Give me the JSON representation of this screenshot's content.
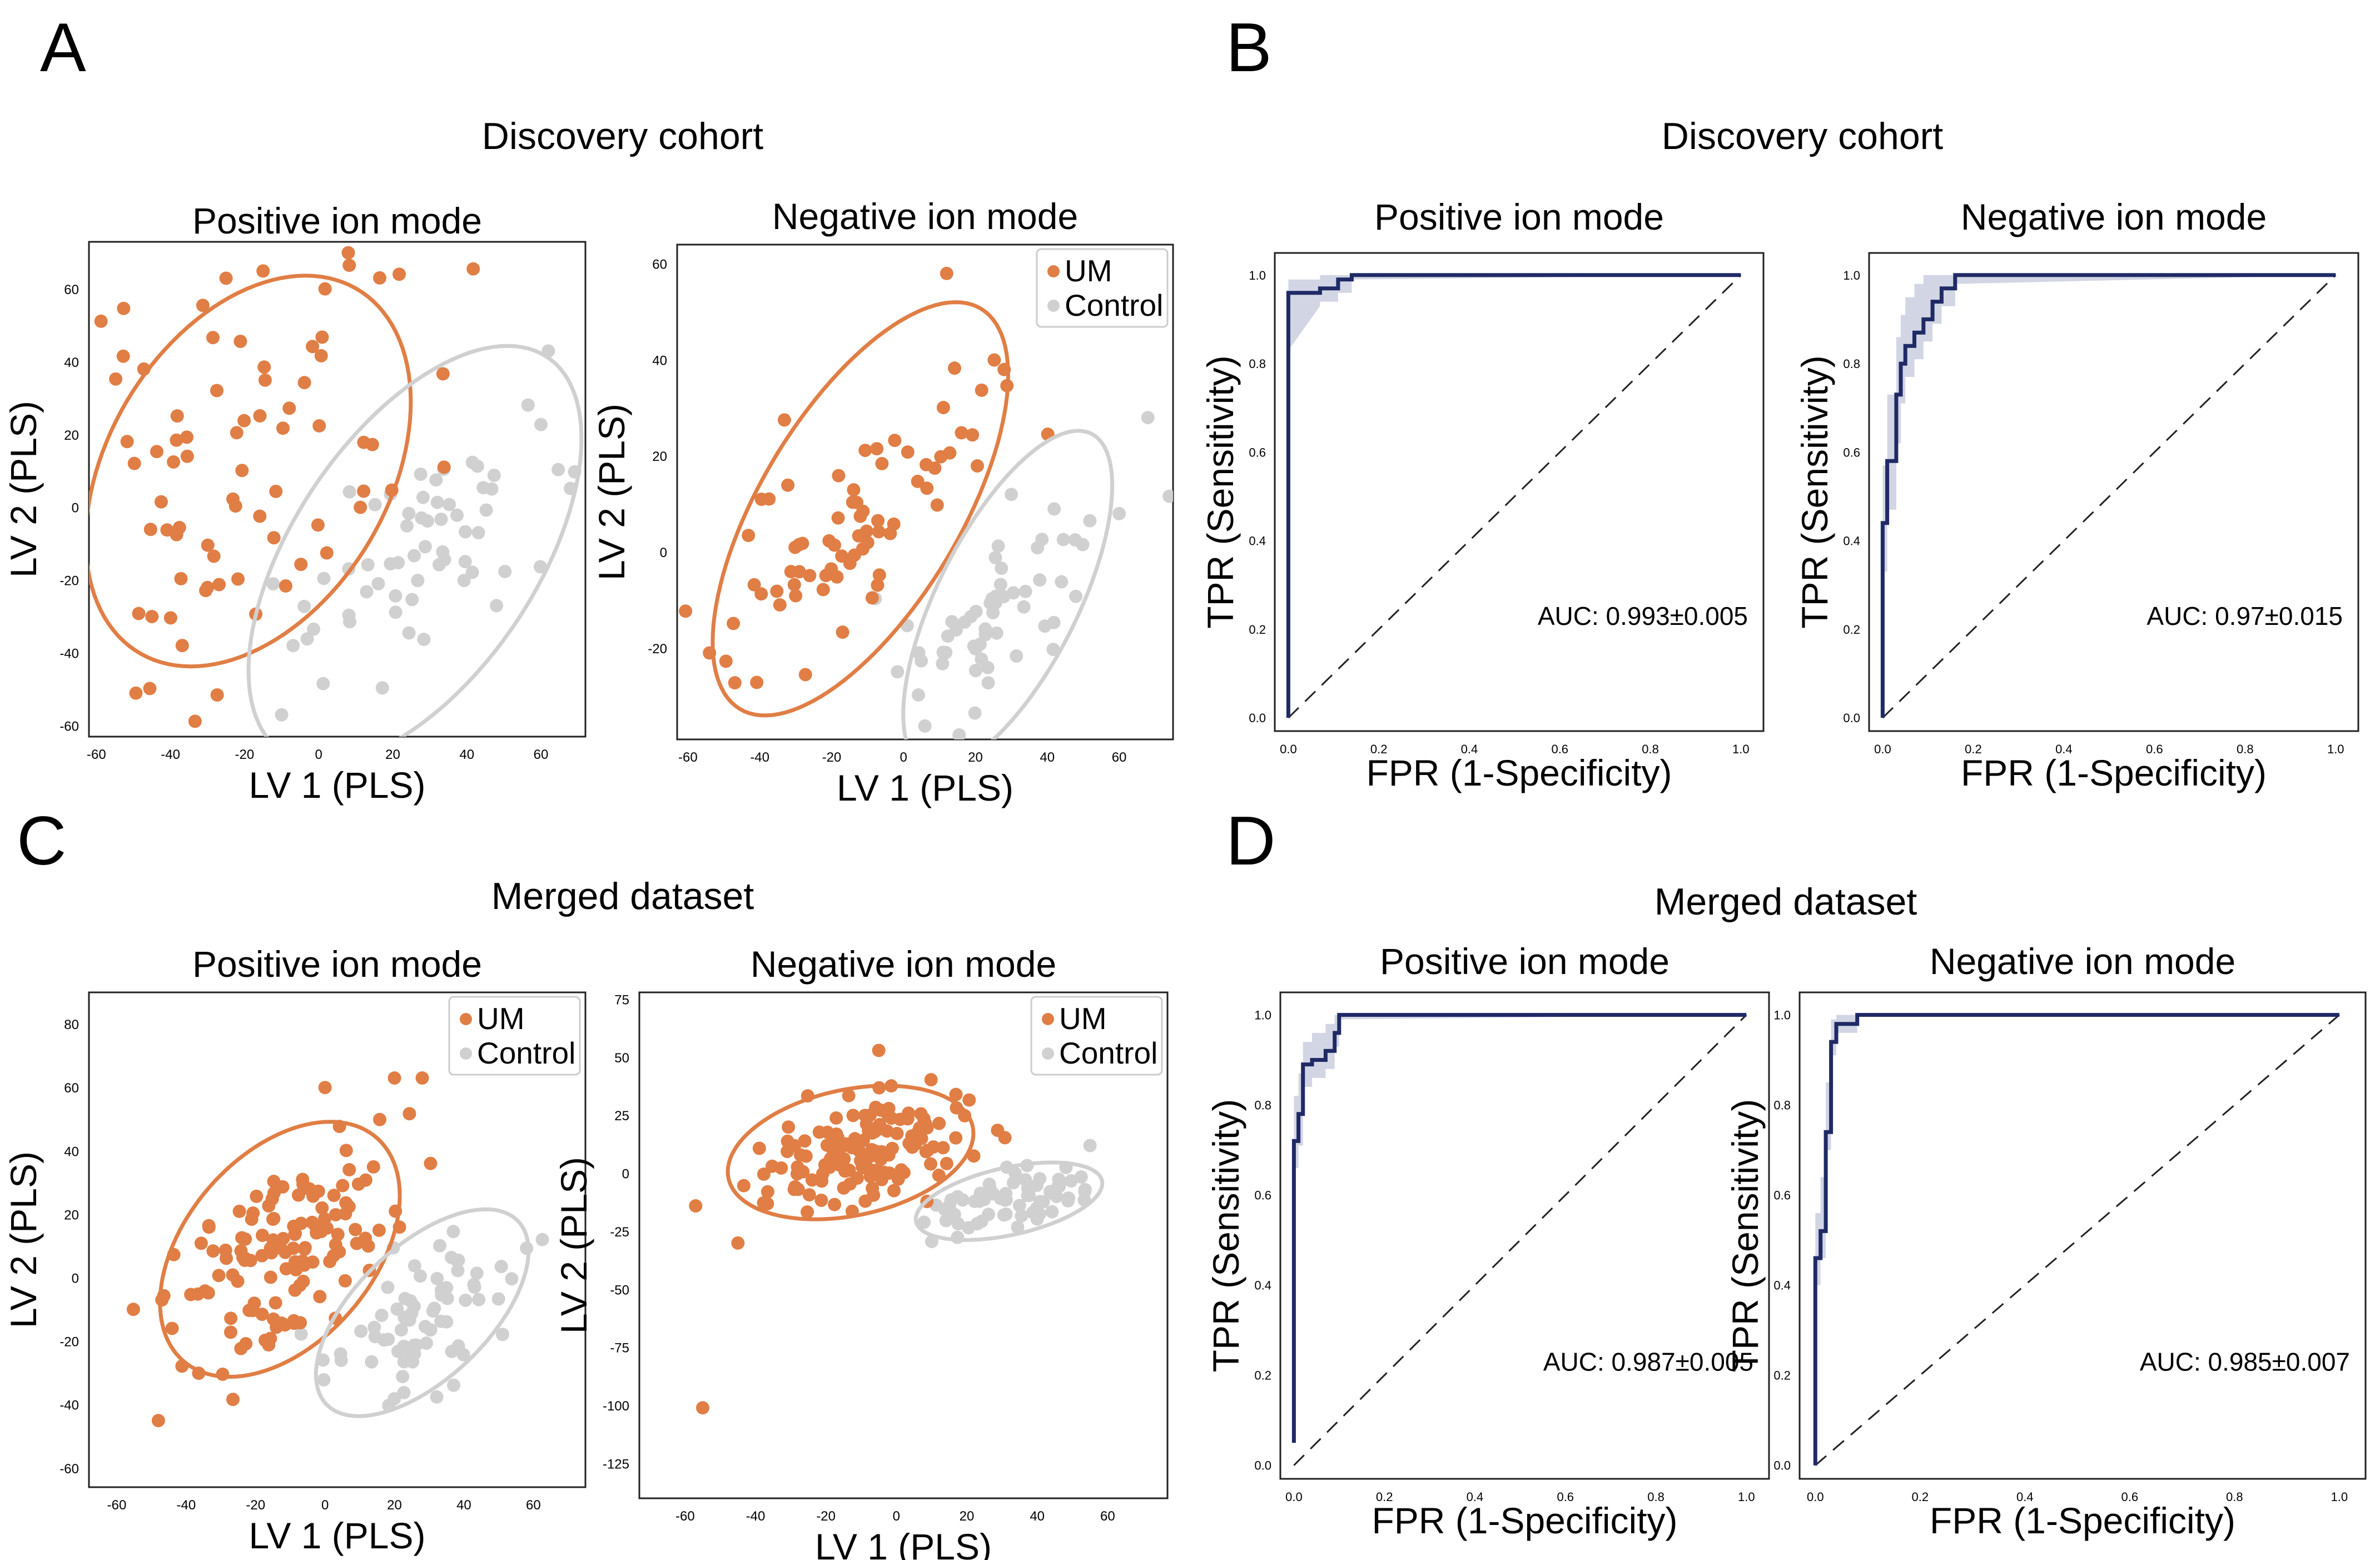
{
  "colors": {
    "um": "#E07E45",
    "control": "#D0D0D0",
    "roc_line": "#1F2A66",
    "roc_band": "#C3C7DB",
    "axis": "#222222"
  },
  "panels": {
    "A": {
      "letter": "A",
      "section_title": "Discovery cohort"
    },
    "B": {
      "letter": "B",
      "section_title": "Discovery cohort"
    },
    "C": {
      "letter": "C",
      "section_title": "Merged dataset"
    },
    "D": {
      "letter": "D",
      "section_title": "Merged dataset"
    }
  },
  "legend": {
    "um": "UM",
    "control": "Control"
  },
  "chart_data": [
    {
      "id": "pA",
      "panel": "A",
      "type": "scatter",
      "title": "Positive ion mode",
      "xlabel": "LV 1 (PLS)",
      "ylabel": "LV 2 (PLS)",
      "xlim": [
        -62,
        72
      ],
      "ylim": [
        -63,
        73
      ],
      "xticks": [
        -60,
        -40,
        -20,
        0,
        20,
        40,
        60
      ],
      "yticks": [
        -60,
        -40,
        -20,
        0,
        20,
        40,
        60
      ],
      "legend": false,
      "series": [
        {
          "name": "UM",
          "color_key": "um",
          "seed": 11,
          "n": 72,
          "cx": -19,
          "cy": 10,
          "sx": 26,
          "sy": 31,
          "rho": 0.45,
          "extra": [
            [
              -15,
              65
            ],
            [
              8,
              70
            ],
            [
              -25,
              63
            ],
            [
              -45,
              -30
            ],
            [
              -30,
              -22
            ]
          ],
          "ellipse": {
            "cx": -19,
            "cy": 10,
            "rx": 58,
            "ry": 38,
            "angle": 60
          }
        },
        {
          "name": "Control",
          "color_key": "control",
          "seed": 23,
          "n": 60,
          "cx": 25,
          "cy": -15,
          "sx": 20,
          "sy": 22,
          "rho": 0.7,
          "extra": [
            [
              62,
              43
            ],
            [
              -10,
              -57
            ],
            [
              48,
              -27
            ]
          ],
          "ellipse": {
            "cx": 26,
            "cy": -13,
            "rx": 65,
            "ry": 33,
            "angle": 57
          }
        }
      ]
    },
    {
      "id": "pA2",
      "panel": "A",
      "type": "scatter",
      "title": "Negative ion mode",
      "xlabel": "LV 1 (PLS)",
      "ylabel": "LV 2 (PLS)",
      "xlim": [
        -63,
        75
      ],
      "ylim": [
        -39,
        64
      ],
      "xticks": [
        -60,
        -40,
        -20,
        0,
        20,
        40,
        60
      ],
      "yticks": [
        -20,
        0,
        20,
        40,
        60
      ],
      "legend": true,
      "series": [
        {
          "name": "UM",
          "color_key": "um",
          "seed": 37,
          "n": 72,
          "cx": -12,
          "cy": 8,
          "sx": 18,
          "sy": 14,
          "rho": 0.7,
          "extra": [
            [
              12,
              58
            ],
            [
              28,
              38
            ],
            [
              -54,
              -21
            ]
          ],
          "ellipse": {
            "cx": -12,
            "cy": 9,
            "rx": 54,
            "ry": 25,
            "angle": 47
          }
        },
        {
          "name": "Control",
          "color_key": "control",
          "seed": 41,
          "n": 58,
          "cx": 28,
          "cy": -12,
          "sx": 14,
          "sy": 12,
          "rho": 0.7,
          "extra": [
            [
              68,
              28
            ],
            [
              60,
              8
            ],
            [
              30,
              12
            ]
          ],
          "ellipse": {
            "cx": 29,
            "cy": -10,
            "rx": 42,
            "ry": 18,
            "angle": 53
          }
        }
      ]
    },
    {
      "id": "pC",
      "panel": "C",
      "type": "scatter",
      "title": "Positive ion mode",
      "xlabel": "LV 1 (PLS)",
      "ylabel": "LV 2 (PLS)",
      "xlim": [
        -68,
        75
      ],
      "ylim": [
        -66,
        90
      ],
      "xticks": [
        -60,
        -40,
        -20,
        0,
        20,
        40,
        60
      ],
      "yticks": [
        -60,
        -40,
        -20,
        0,
        20,
        40,
        60,
        80
      ],
      "legend": true,
      "series": [
        {
          "name": "UM",
          "color_key": "um",
          "seed": 53,
          "n": 130,
          "cx": -12,
          "cy": 8,
          "sx": 16,
          "sy": 16,
          "rho": 0.55,
          "extra": [
            [
              0,
              60
            ],
            [
              20,
              63
            ],
            [
              28,
              63
            ],
            [
              -48,
              -45
            ]
          ],
          "ellipse": {
            "cx": -13,
            "cy": 9,
            "rx": 45,
            "ry": 28,
            "angle": 55
          }
        },
        {
          "name": "Control",
          "color_key": "control",
          "seed": 67,
          "n": 72,
          "cx": 28,
          "cy": -12,
          "sx": 13,
          "sy": 13,
          "rho": 0.6,
          "extra": [],
          "ellipse": {
            "cx": 28,
            "cy": -11,
            "rx": 40,
            "ry": 20,
            "angle": 48
          }
        }
      ]
    },
    {
      "id": "pC2",
      "panel": "C",
      "type": "scatter",
      "title": "Negative ion mode",
      "xlabel": "LV 1 (PLS)",
      "ylabel": "LV 2 (PLS)",
      "xlim": [
        -73,
        77
      ],
      "ylim": [
        -140,
        78
      ],
      "xticks": [
        -60,
        -40,
        -20,
        0,
        20,
        40,
        60
      ],
      "yticks": [
        -125,
        -100,
        -75,
        -50,
        -25,
        0,
        25,
        50,
        75
      ],
      "legend": true,
      "series": [
        {
          "name": "UM",
          "color_key": "um",
          "seed": 79,
          "n": 150,
          "cx": -8,
          "cy": 9,
          "sx": 14,
          "sy": 12,
          "rho": 0.5,
          "extra": [
            [
              -5,
              53
            ],
            [
              -57,
              -14
            ],
            [
              -55,
              -101
            ],
            [
              -45,
              -30
            ]
          ],
          "ellipse": {
            "cx": -13,
            "cy": 9,
            "rx": 37,
            "ry": 26,
            "angle": 28
          }
        },
        {
          "name": "Control",
          "color_key": "control",
          "seed": 83,
          "n": 70,
          "cx": 31,
          "cy": -12,
          "sx": 11,
          "sy": 7,
          "rho": 0.4,
          "extra": [
            [
              55,
              12
            ]
          ],
          "ellipse": {
            "cx": 32,
            "cy": -12,
            "rx": 28,
            "ry": 14,
            "angle": 22
          }
        }
      ]
    },
    {
      "id": "pB",
      "panel": "B",
      "type": "line",
      "subtype": "roc",
      "title": "Positive ion mode",
      "xlabel": "FPR (1-Specificity)",
      "ylabel": "TPR (Sensitivity)",
      "xlim": [
        -0.03,
        1.05
      ],
      "ylim": [
        -0.03,
        1.05
      ],
      "xticks": [
        "0.0",
        "0.2",
        "0.4",
        "0.6",
        "0.8",
        "1.0"
      ],
      "yticks": [
        "0.0",
        "0.2",
        "0.4",
        "0.6",
        "0.8",
        "1.0"
      ],
      "auc_label": "AUC: 0.993±0.005",
      "x": [
        0,
        0,
        0.07,
        0.07,
        0.11,
        0.11,
        0.14,
        0.14,
        1
      ],
      "y": [
        0,
        0.96,
        0.96,
        0.97,
        0.97,
        0.99,
        0.99,
        1.0,
        1.0
      ],
      "band_upper": [
        0.08,
        0.99,
        0.99,
        1.0,
        1.0,
        1.0,
        1.0,
        1.0,
        1.0
      ],
      "band_lower": [
        0,
        0.83,
        0.93,
        0.94,
        0.94,
        0.96,
        0.96,
        0.99,
        1.0
      ]
    },
    {
      "id": "pB2",
      "panel": "B",
      "type": "line",
      "subtype": "roc",
      "title": "Negative ion mode",
      "xlabel": "FPR (1-Specificity)",
      "ylabel": "TPR (Sensitivity)",
      "xlim": [
        -0.03,
        1.05
      ],
      "ylim": [
        -0.03,
        1.05
      ],
      "xticks": [
        "0.0",
        "0.2",
        "0.4",
        "0.6",
        "0.8",
        "1.0"
      ],
      "yticks": [
        "0.0",
        "0.2",
        "0.4",
        "0.6",
        "0.8",
        "1.0"
      ],
      "auc_label": "AUC: 0.97±0.015",
      "x": [
        0,
        0,
        0.01,
        0.01,
        0.03,
        0.03,
        0.04,
        0.04,
        0.05,
        0.05,
        0.07,
        0.07,
        0.09,
        0.09,
        0.11,
        0.11,
        0.13,
        0.13,
        0.16,
        0.16,
        1
      ],
      "y": [
        0,
        0.44,
        0.44,
        0.58,
        0.58,
        0.73,
        0.73,
        0.8,
        0.8,
        0.84,
        0.84,
        0.87,
        0.87,
        0.9,
        0.9,
        0.94,
        0.94,
        0.97,
        0.97,
        1.0,
        1.0
      ],
      "band_upper": [
        0.08,
        0.57,
        0.57,
        0.73,
        0.73,
        0.86,
        0.86,
        0.91,
        0.91,
        0.95,
        0.95,
        0.98,
        0.98,
        1.0,
        1.0,
        1.0,
        1.0,
        1.0,
        1.0,
        1.0,
        1.0
      ],
      "band_lower": [
        0,
        0.33,
        0.33,
        0.47,
        0.47,
        0.62,
        0.62,
        0.71,
        0.71,
        0.77,
        0.77,
        0.81,
        0.81,
        0.85,
        0.85,
        0.89,
        0.89,
        0.93,
        0.93,
        0.98,
        1.0
      ]
    },
    {
      "id": "pD",
      "panel": "D",
      "type": "line",
      "subtype": "roc",
      "title": "Positive ion mode",
      "xlabel": "FPR (1-Specificity)",
      "ylabel": "TPR (Sensitivity)",
      "xlim": [
        -0.03,
        1.05
      ],
      "ylim": [
        -0.03,
        1.05
      ],
      "xticks": [
        "0.0",
        "0.2",
        "0.4",
        "0.6",
        "0.8",
        "1.0"
      ],
      "yticks": [
        "0.0",
        "0.2",
        "0.4",
        "0.6",
        "0.8",
        "1.0"
      ],
      "auc_label": "AUC: 0.987±0.005",
      "x": [
        0,
        0,
        0.01,
        0.01,
        0.02,
        0.02,
        0.04,
        0.04,
        0.07,
        0.07,
        0.09,
        0.09,
        0.1,
        0.1,
        1
      ],
      "y": [
        0.05,
        0.72,
        0.72,
        0.78,
        0.78,
        0.89,
        0.89,
        0.9,
        0.9,
        0.92,
        0.92,
        0.96,
        0.96,
        1.0,
        1.0
      ],
      "band_upper": [
        0.1,
        0.82,
        0.82,
        0.87,
        0.87,
        0.94,
        0.94,
        0.96,
        0.96,
        0.98,
        0.98,
        1.0,
        1.0,
        1.0,
        1.0
      ],
      "band_lower": [
        0,
        0.66,
        0.66,
        0.71,
        0.71,
        0.84,
        0.84,
        0.86,
        0.86,
        0.88,
        0.88,
        0.93,
        0.93,
        0.99,
        1.0
      ]
    },
    {
      "id": "pD2",
      "panel": "D",
      "type": "line",
      "subtype": "roc",
      "title": "Negative ion mode",
      "xlabel": "FPR (1-Specificity)",
      "ylabel": "TPR (Sensitivity)",
      "xlim": [
        -0.03,
        1.05
      ],
      "ylim": [
        -0.03,
        1.05
      ],
      "xticks": [
        "0.0",
        "0.2",
        "0.4",
        "0.6",
        "0.8",
        "1.0"
      ],
      "yticks": [
        "0.0",
        "0.2",
        "0.4",
        "0.6",
        "0.8",
        "1.0"
      ],
      "auc_label": "AUC: 0.985±0.007",
      "x": [
        0,
        0,
        0.01,
        0.01,
        0.02,
        0.02,
        0.03,
        0.03,
        0.04,
        0.04,
        0.08,
        0.08,
        1
      ],
      "y": [
        0,
        0.46,
        0.46,
        0.52,
        0.52,
        0.74,
        0.74,
        0.94,
        0.94,
        0.98,
        0.98,
        1.0,
        1.0
      ],
      "band_upper": [
        0.08,
        0.56,
        0.56,
        0.64,
        0.64,
        0.85,
        0.85,
        0.99,
        0.99,
        1.0,
        1.0,
        1.0,
        1.0
      ],
      "band_lower": [
        0,
        0.4,
        0.4,
        0.46,
        0.46,
        0.7,
        0.7,
        0.91,
        0.91,
        0.96,
        0.96,
        1.0,
        1.0
      ]
    }
  ]
}
